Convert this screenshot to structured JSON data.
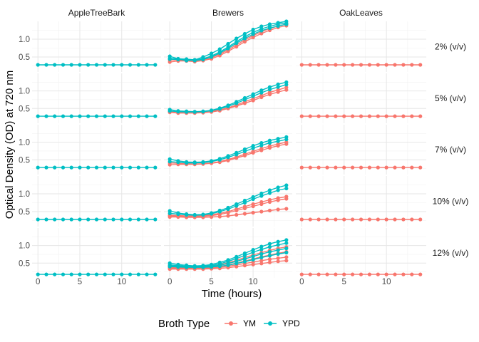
{
  "chart_data": {
    "type": "line",
    "xlabel": "Time (hours)",
    "ylabel": "Optical Density (OD) at 720 nm",
    "columns": [
      "AppleTreeBark",
      "Brewers",
      "OakLeaves"
    ],
    "rows": [
      "2% (v/v)",
      "5% (v/v)",
      "7% (v/v)",
      "10% (v/v)",
      "12% (v/v)"
    ],
    "x": [
      0,
      1,
      2,
      3,
      4,
      5,
      6,
      7,
      8,
      9,
      10,
      11,
      12,
      13,
      14
    ],
    "x_ticks": [
      0,
      5,
      10
    ],
    "xlim": [
      -0.7,
      14.7
    ],
    "y_ticks": [
      0.5,
      1.0
    ],
    "y_tick_labels": [
      "0.5",
      "1.0"
    ],
    "ylim": [
      0.08,
      1.5
    ],
    "grid": true,
    "legend": {
      "title": "Broth Type",
      "position": "bottom",
      "entries": [
        {
          "name": "YM",
          "color": "#F8766D"
        },
        {
          "name": "YPD",
          "color": "#00BFC4"
        }
      ]
    },
    "flat_values": {
      "AppleTreeBark": [
        0.28,
        0.28,
        0.28,
        0.28,
        0.18
      ],
      "OakLeaves": [
        0.28,
        0.28,
        0.28,
        0.28,
        0.18
      ]
    },
    "flat_broth": {
      "AppleTreeBark": "YPD",
      "OakLeaves": "YM"
    },
    "brewers": [
      {
        "ypd": [
          [
            0.52,
            0.45,
            0.44,
            0.42,
            0.5,
            0.6,
            0.72,
            0.87,
            1.02,
            1.15,
            1.27,
            1.36,
            1.42,
            1.46,
            1.5
          ],
          [
            0.46,
            0.44,
            0.4,
            0.42,
            0.45,
            0.53,
            0.64,
            0.78,
            0.93,
            1.07,
            1.19,
            1.29,
            1.36,
            1.42,
            1.45
          ],
          [
            0.44,
            0.43,
            0.42,
            0.4,
            0.43,
            0.5,
            0.61,
            0.74,
            0.89,
            1.02,
            1.14,
            1.24,
            1.31,
            1.37,
            1.42
          ]
        ],
        "ym": [
          [
            0.42,
            0.42,
            0.4,
            0.38,
            0.42,
            0.48,
            0.58,
            0.7,
            0.84,
            0.98,
            1.1,
            1.21,
            1.3,
            1.37,
            1.42
          ],
          [
            0.36,
            0.39,
            0.39,
            0.37,
            0.4,
            0.45,
            0.54,
            0.66,
            0.79,
            0.93,
            1.05,
            1.16,
            1.25,
            1.33,
            1.38
          ]
        ]
      },
      {
        "ypd": [
          [
            0.47,
            0.43,
            0.42,
            0.41,
            0.42,
            0.45,
            0.51,
            0.59,
            0.69,
            0.8,
            0.91,
            1.02,
            1.11,
            1.19,
            1.25
          ],
          [
            0.43,
            0.41,
            0.4,
            0.4,
            0.41,
            0.44,
            0.49,
            0.56,
            0.65,
            0.75,
            0.85,
            0.95,
            1.04,
            1.11,
            1.18
          ]
        ],
        "ym": [
          [
            0.41,
            0.4,
            0.38,
            0.38,
            0.39,
            0.42,
            0.46,
            0.52,
            0.6,
            0.69,
            0.78,
            0.87,
            0.96,
            1.03,
            1.1
          ],
          [
            0.39,
            0.37,
            0.37,
            0.37,
            0.38,
            0.4,
            0.44,
            0.5,
            0.57,
            0.65,
            0.73,
            0.82,
            0.9,
            0.97,
            1.03
          ]
        ]
      },
      {
        "ypd": [
          [
            0.52,
            0.47,
            0.44,
            0.43,
            0.44,
            0.47,
            0.53,
            0.61,
            0.7,
            0.8,
            0.9,
            0.98,
            1.05,
            1.1,
            1.15
          ],
          [
            0.45,
            0.43,
            0.41,
            0.41,
            0.42,
            0.45,
            0.5,
            0.57,
            0.65,
            0.74,
            0.83,
            0.91,
            0.98,
            1.03,
            1.08
          ]
        ],
        "ym": [
          [
            0.41,
            0.4,
            0.39,
            0.38,
            0.39,
            0.41,
            0.45,
            0.51,
            0.58,
            0.66,
            0.74,
            0.82,
            0.89,
            0.95,
            1.0
          ],
          [
            0.36,
            0.37,
            0.37,
            0.37,
            0.38,
            0.4,
            0.43,
            0.48,
            0.55,
            0.62,
            0.7,
            0.77,
            0.84,
            0.9,
            0.95
          ]
        ]
      },
      {
        "ypd": [
          [
            0.52,
            0.46,
            0.43,
            0.41,
            0.42,
            0.46,
            0.53,
            0.61,
            0.71,
            0.81,
            0.91,
            1.01,
            1.1,
            1.18,
            1.24
          ],
          [
            0.45,
            0.43,
            0.41,
            0.4,
            0.41,
            0.44,
            0.5,
            0.57,
            0.66,
            0.75,
            0.85,
            0.94,
            1.02,
            1.1,
            1.15
          ]
        ],
        "ym": [
          [
            0.4,
            0.39,
            0.38,
            0.38,
            0.39,
            0.41,
            0.45,
            0.5,
            0.57,
            0.64,
            0.71,
            0.77,
            0.83,
            0.88,
            0.92
          ],
          [
            0.38,
            0.37,
            0.36,
            0.36,
            0.37,
            0.39,
            0.42,
            0.47,
            0.53,
            0.59,
            0.65,
            0.71,
            0.77,
            0.82,
            0.86
          ],
          [
            0.35,
            0.35,
            0.34,
            0.34,
            0.34,
            0.35,
            0.36,
            0.38,
            0.41,
            0.44,
            0.47,
            0.5,
            0.53,
            0.56,
            0.58
          ]
        ]
      },
      {
        "ypd": [
          [
            0.5,
            0.46,
            0.44,
            0.42,
            0.43,
            0.46,
            0.52,
            0.59,
            0.68,
            0.78,
            0.88,
            0.97,
            1.05,
            1.11,
            1.16
          ],
          [
            0.45,
            0.43,
            0.41,
            0.4,
            0.41,
            0.43,
            0.48,
            0.55,
            0.63,
            0.72,
            0.81,
            0.89,
            0.96,
            1.02,
            1.07
          ],
          [
            0.42,
            0.41,
            0.4,
            0.39,
            0.4,
            0.41,
            0.44,
            0.49,
            0.55,
            0.62,
            0.69,
            0.76,
            0.82,
            0.87,
            0.92
          ],
          [
            0.4,
            0.39,
            0.38,
            0.38,
            0.38,
            0.39,
            0.41,
            0.44,
            0.49,
            0.54,
            0.6,
            0.66,
            0.71,
            0.76,
            0.8
          ]
        ],
        "ym": [
          [
            0.42,
            0.4,
            0.39,
            0.38,
            0.39,
            0.41,
            0.45,
            0.51,
            0.58,
            0.66,
            0.73,
            0.8,
            0.86,
            0.92,
            0.96
          ],
          [
            0.38,
            0.37,
            0.36,
            0.36,
            0.37,
            0.38,
            0.41,
            0.45,
            0.5,
            0.56,
            0.62,
            0.68,
            0.73,
            0.78,
            0.82
          ],
          [
            0.36,
            0.35,
            0.34,
            0.34,
            0.35,
            0.36,
            0.38,
            0.41,
            0.45,
            0.49,
            0.53,
            0.57,
            0.61,
            0.64,
            0.67
          ],
          [
            0.33,
            0.33,
            0.33,
            0.33,
            0.33,
            0.34,
            0.35,
            0.37,
            0.4,
            0.43,
            0.46,
            0.49,
            0.52,
            0.55,
            0.57
          ]
        ]
      }
    ]
  }
}
